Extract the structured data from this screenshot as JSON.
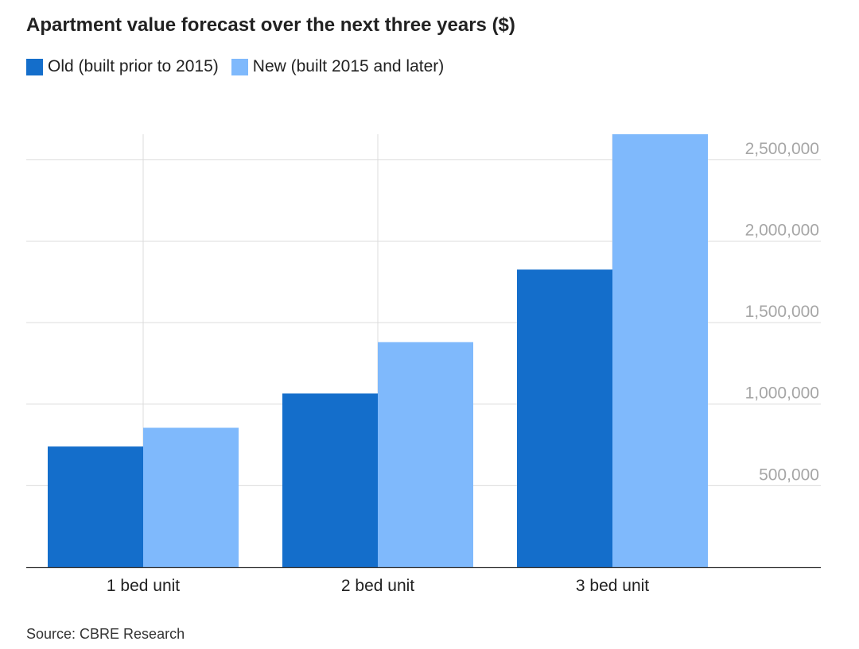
{
  "header": {
    "title": "Apartment value forecast over the next three years ($)"
  },
  "legend": [
    {
      "label": "Old (built prior to 2015)",
      "color": "#146ecb"
    },
    {
      "label": "New (built 2015 and later)",
      "color": "#7fb9fc"
    }
  ],
  "footer": {
    "source": "Source: CBRE Research"
  },
  "chart_data": {
    "type": "bar",
    "title": "Apartment value forecast over the next three years ($)",
    "categories": [
      "1 bed unit",
      "2 bed unit",
      "3 bed unit"
    ],
    "series": [
      {
        "name": "Old (built prior to 2015)",
        "values": [
          740000,
          1065000,
          1825000
        ],
        "color": "#146ecb"
      },
      {
        "name": "New (built 2015 and later)",
        "values": [
          855000,
          1380000,
          2655000
        ],
        "color": "#7fb9fc"
      }
    ],
    "y_ticks": [
      "500,000",
      "1,000,000",
      "1,500,000",
      "2,000,000",
      "2,500,000"
    ],
    "ylim": [
      0,
      2655000
    ],
    "y_axis_position": "right",
    "grid": true,
    "legend_position": "top-left"
  }
}
